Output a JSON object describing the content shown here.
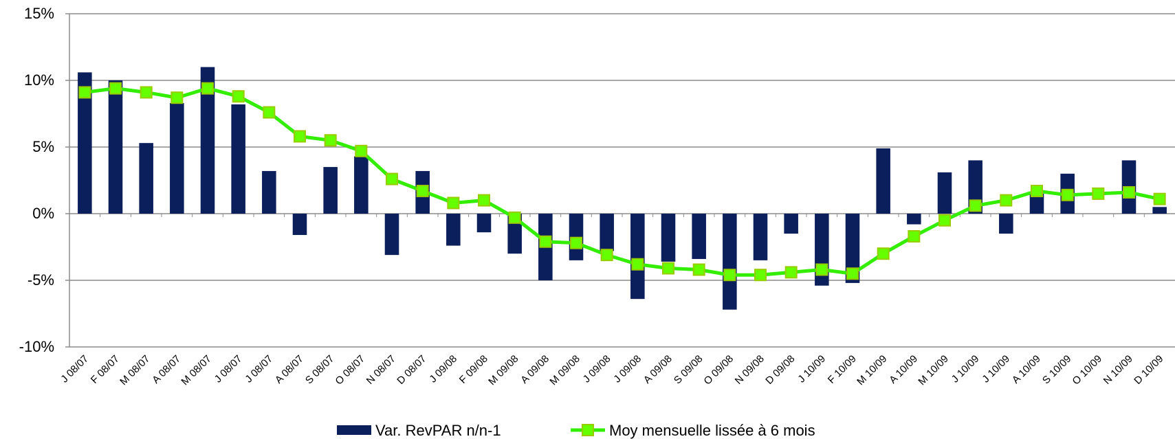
{
  "chart_data": {
    "type": "bar_line",
    "categories": [
      "J 08/07",
      "F 08/07",
      "M 08/07",
      "A 08/07",
      "M 08/07",
      "J 08/07",
      "J 08/07",
      "A 08/07",
      "S 08/07",
      "O 08/07",
      "N 08/07",
      "D 08/07",
      "J 09/08",
      "F 09/08",
      "M 09/08",
      "A 09/08",
      "M 09/08",
      "J 09/08",
      "J 09/08",
      "A 09/08",
      "S 09/08",
      "O 09/08",
      "N 09/08",
      "D 09/08",
      "J 10/09",
      "F 10/09",
      "M 10/09",
      "A 10/09",
      "M 10/09",
      "J 10/09",
      "J 10/09",
      "A 10/09",
      "S 10/09",
      "O 10/09",
      "N 10/09",
      "D 10/09"
    ],
    "series": [
      {
        "name": "Var. RevPAR n/n-1",
        "type": "bar",
        "color": "#0a1f5c",
        "values": [
          10.6,
          10.0,
          5.3,
          8.3,
          11.0,
          8.2,
          3.2,
          -1.6,
          3.5,
          4.3,
          -3.1,
          3.2,
          -2.4,
          -1.4,
          -3.0,
          -5.0,
          -3.5,
          -2.8,
          -6.4,
          -3.6,
          -3.4,
          -7.2,
          -3.5,
          -1.5,
          -5.4,
          -5.2,
          4.9,
          -0.8,
          3.1,
          4.0,
          -1.5,
          1.5,
          3.0,
          0.0,
          4.0,
          0.5
        ]
      },
      {
        "name": "Moy mensuelle lissée à 6 mois",
        "type": "line",
        "color": "#33ee00",
        "values": [
          9.1,
          9.4,
          9.1,
          8.7,
          9.4,
          8.8,
          7.6,
          5.8,
          5.5,
          4.7,
          2.6,
          1.7,
          0.8,
          1.0,
          -0.3,
          -2.1,
          -2.2,
          -3.1,
          -3.8,
          -4.1,
          -4.2,
          -4.6,
          -4.6,
          -4.4,
          -4.2,
          -4.5,
          -3.0,
          -1.7,
          -0.5,
          0.6,
          1.0,
          1.7,
          1.4,
          1.5,
          1.6,
          1.1
        ]
      }
    ],
    "ylim": [
      -10,
      15
    ],
    "yticks": [
      {
        "value": -10,
        "label": "-10%"
      },
      {
        "value": -5,
        "label": "-5%"
      },
      {
        "value": 0,
        "label": "0%"
      },
      {
        "value": 5,
        "label": "5%"
      },
      {
        "value": 10,
        "label": "10%"
      },
      {
        "value": 15,
        "label": "15%"
      }
    ],
    "grid": true,
    "legend": "bottom"
  }
}
